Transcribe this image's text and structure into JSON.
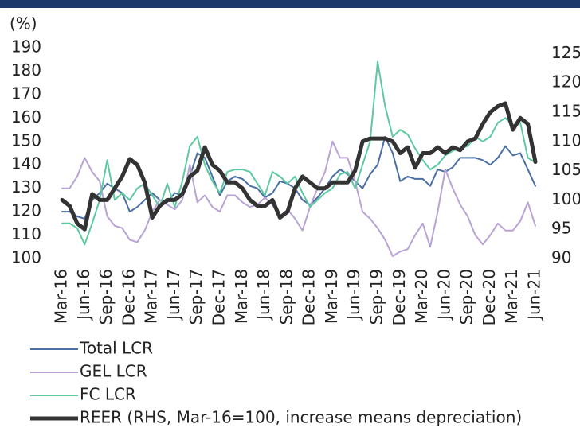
{
  "chart_data": {
    "type": "line",
    "y_label": "(%)",
    "categories": [
      "Mar-16",
      null,
      null,
      "Jun-16",
      null,
      null,
      "Sep-16",
      null,
      null,
      "Dec-16",
      null,
      null,
      "Mar-17",
      null,
      null,
      "Jun-17",
      null,
      null,
      "Sep-17",
      null,
      null,
      "Dec-17",
      null,
      null,
      "Mar-18",
      null,
      null,
      "Jun-18",
      null,
      null,
      "Sep-18",
      null,
      null,
      "Dec-18",
      null,
      null,
      "Mar-19",
      null,
      null,
      "Jun-19",
      null,
      null,
      "Sep-19",
      null,
      null,
      "Dec-19",
      null,
      null,
      "Mar-20",
      null,
      null,
      "Jun-20",
      null,
      null,
      "Sep-20",
      null,
      null,
      "Dec-20",
      null,
      null,
      "Mar-21",
      null,
      null,
      "Jun-21"
    ],
    "series": [
      {
        "name": "Total LCR",
        "color": "#4a6fa5",
        "width": 2,
        "values": [
          120,
          120,
          118,
          117,
          125,
          128,
          132,
          130,
          128,
          120,
          122,
          125,
          128,
          125,
          124,
          128,
          127,
          135,
          145,
          143,
          135,
          127,
          133,
          135,
          134,
          131,
          130,
          126,
          128,
          133,
          132,
          130,
          125,
          123,
          126,
          130,
          135,
          138,
          136,
          133,
          130,
          136,
          140,
          152,
          145,
          133,
          135,
          134,
          134,
          131,
          138,
          137,
          139,
          143,
          143,
          143,
          142,
          140,
          143,
          148,
          144,
          145,
          138,
          131
        ]
      },
      {
        "name": "GEL LCR",
        "color": "#b9a3d6",
        "width": 2,
        "values": [
          130,
          130,
          135,
          143,
          137,
          133,
          118,
          114,
          113,
          108,
          107,
          112,
          120,
          125,
          123,
          121,
          125,
          140,
          124,
          127,
          122,
          120,
          127,
          127,
          124,
          122,
          123,
          126,
          123,
          118,
          121,
          117,
          112,
          122,
          130,
          137,
          150,
          143,
          143,
          133,
          120,
          117,
          113,
          108,
          101,
          103,
          104,
          110,
          115,
          105,
          120,
          138,
          130,
          123,
          118,
          110,
          106,
          110,
          115,
          112,
          112,
          116,
          124,
          114
        ]
      },
      {
        "name": "FC LCR",
        "color": "#5ec9a1",
        "width": 2,
        "values": [
          115,
          115,
          113,
          106,
          115,
          125,
          142,
          125,
          128,
          125,
          130,
          132,
          127,
          122,
          132,
          122,
          133,
          148,
          152,
          140,
          133,
          128,
          137,
          138,
          138,
          137,
          132,
          127,
          137,
          135,
          132,
          135,
          128,
          122,
          125,
          128,
          130,
          136,
          137,
          130,
          140,
          150,
          184,
          165,
          152,
          155,
          153,
          147,
          142,
          138,
          140,
          144,
          146,
          147,
          148,
          152,
          150,
          152,
          158,
          160,
          157,
          158,
          143,
          141
        ]
      },
      {
        "name": "REER (RHS, Mar-16=100, increase means depreciation)",
        "color": "#333333",
        "width": 5,
        "axis": "y2",
        "values": [
          100,
          99,
          96,
          95,
          101,
          100,
          100,
          102,
          104,
          107,
          106,
          103,
          97,
          99,
          100,
          100,
          101,
          104,
          105,
          109,
          106,
          105,
          103,
          103,
          102,
          100,
          99,
          99,
          100,
          97,
          98,
          102,
          104,
          103,
          102,
          102,
          103,
          103,
          103,
          105,
          110,
          110.5,
          110.5,
          110.5,
          110,
          108,
          109,
          105.5,
          108,
          108,
          109,
          108,
          109,
          108.5,
          110,
          110.5,
          113,
          115,
          116,
          116.5,
          112,
          114,
          113,
          106.5
        ]
      }
    ],
    "ylim": [
      100,
      190
    ],
    "yticks": [
      100,
      110,
      120,
      130,
      140,
      150,
      160,
      170,
      180,
      190
    ],
    "y2lim": [
      90,
      126
    ],
    "y2ticks": [
      90,
      95,
      100,
      105,
      110,
      115,
      120,
      125
    ],
    "grid": false,
    "legend": "bottom"
  }
}
